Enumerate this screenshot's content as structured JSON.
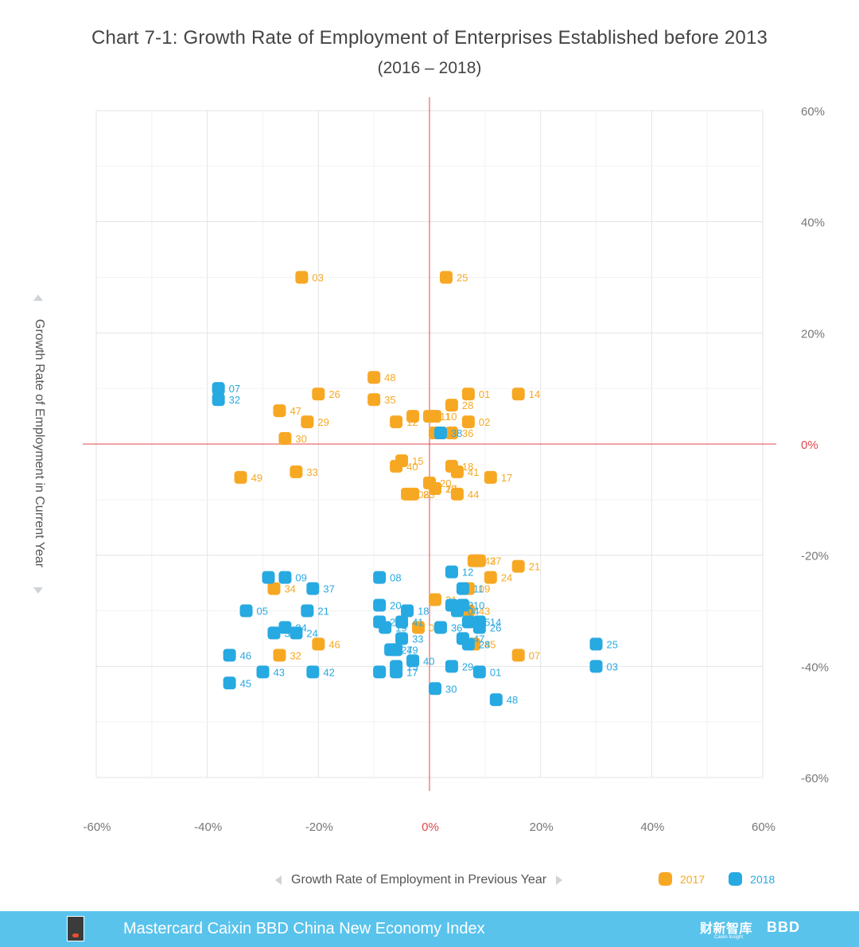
{
  "title": "Chart 7-1: Growth Rate of Employment of Enterprises Established before 2013",
  "subtitle": "(2016 – 2018)",
  "footer": {
    "text": "Mastercard Caixin BBD China New Economy Index",
    "brand1": "财新智库",
    "brand1_sub": "Caixin Insight",
    "brand2": "BBD"
  },
  "colors": {
    "2017": "#f7a823",
    "2018": "#27a9e1",
    "zero_axis": "#e0474c",
    "grid": "#e6e6e6"
  },
  "chart_data": {
    "type": "scatter",
    "title": "Chart 7-1: Growth Rate of Employment of Enterprises Established before 2013",
    "subtitle": "(2016 – 2018)",
    "xlabel": "Growth Rate of Employment in Previous Year",
    "ylabel": "Growth Rate of Employment in Current Year",
    "xlim": [
      -60,
      60
    ],
    "ylim": [
      -60,
      60
    ],
    "x_ticks": [
      "-60%",
      "-40%",
      "-20%",
      "0%",
      "20%",
      "40%",
      "60%"
    ],
    "y_ticks": [
      "60%",
      "40%",
      "20%",
      "0%",
      "-20%",
      "-40%",
      "-60%"
    ],
    "grid": true,
    "legend_position": "bottom-right",
    "series": [
      {
        "name": "2017",
        "points": [
          {
            "id": "03",
            "x": -23,
            "y": 30
          },
          {
            "id": "25",
            "x": 3,
            "y": 30
          },
          {
            "id": "48",
            "x": -10,
            "y": 12
          },
          {
            "id": "26",
            "x": -20,
            "y": 9
          },
          {
            "id": "35",
            "x": -10,
            "y": 8
          },
          {
            "id": "01",
            "x": 7,
            "y": 9
          },
          {
            "id": "14",
            "x": 16,
            "y": 9
          },
          {
            "id": "47",
            "x": -27,
            "y": 6
          },
          {
            "id": "12",
            "x": -6,
            "y": 4
          },
          {
            "id": "04",
            "x": -3,
            "y": 5
          },
          {
            "id": "11",
            "x": 0,
            "y": 5
          },
          {
            "id": "28",
            "x": 4,
            "y": 7
          },
          {
            "id": "29",
            "x": -22,
            "y": 4
          },
          {
            "id": "10",
            "x": 1,
            "y": 5
          },
          {
            "id": "02",
            "x": 7,
            "y": 4
          },
          {
            "id": "30",
            "x": -26,
            "y": 1
          },
          {
            "id": "38",
            "x": 1,
            "y": 2
          },
          {
            "id": "36",
            "x": 4,
            "y": 2
          },
          {
            "id": "15",
            "x": -5,
            "y": -3
          },
          {
            "id": "40",
            "x": -6,
            "y": -4
          },
          {
            "id": "18",
            "x": 4,
            "y": -4
          },
          {
            "id": "49",
            "x": -34,
            "y": -6
          },
          {
            "id": "33",
            "x": -24,
            "y": -5
          },
          {
            "id": "41",
            "x": 5,
            "y": -5
          },
          {
            "id": "17",
            "x": 11,
            "y": -6
          },
          {
            "id": "20",
            "x": 0,
            "y": -7
          },
          {
            "id": "27",
            "x": 1,
            "y": -8
          },
          {
            "id": "08",
            "x": -4,
            "y": -9
          },
          {
            "id": "44",
            "x": 5,
            "y": -9
          },
          {
            "id": "23",
            "x": -3,
            "y": -9
          },
          {
            "id": "19",
            "x": 1,
            "y": -8
          },
          {
            "id": "42",
            "x": 8,
            "y": -21
          },
          {
            "id": "37",
            "x": 9,
            "y": -21
          },
          {
            "id": "21",
            "x": 16,
            "y": -22
          },
          {
            "id": "24",
            "x": 11,
            "y": -24
          },
          {
            "id": "34",
            "x": -28,
            "y": -26
          },
          {
            "id": "09",
            "x": 7,
            "y": -26
          },
          {
            "id": "31",
            "x": 1,
            "y": -28
          },
          {
            "id": "22",
            "x": 4,
            "y": -29
          },
          {
            "id": "43",
            "x": 7,
            "y": -30
          },
          {
            "id": "05",
            "x": -2,
            "y": -33
          },
          {
            "id": "46",
            "x": -20,
            "y": -36
          },
          {
            "id": "45",
            "x": 8,
            "y": -36
          },
          {
            "id": "32",
            "x": -27,
            "y": -38
          },
          {
            "id": "07",
            "x": 16,
            "y": -38
          }
        ]
      },
      {
        "name": "2018",
        "points": [
          {
            "id": "07",
            "x": -38,
            "y": 10
          },
          {
            "id": "32",
            "x": -38,
            "y": 8
          },
          {
            "id": "38",
            "x": 2,
            "y": 2
          },
          {
            "id": "09",
            "x": -26,
            "y": -24
          },
          {
            "id": "22",
            "x": -29,
            "y": -24
          },
          {
            "id": "08",
            "x": -9,
            "y": -24
          },
          {
            "id": "12",
            "x": 4,
            "y": -23
          },
          {
            "id": "37",
            "x": -21,
            "y": -26
          },
          {
            "id": "11",
            "x": 6,
            "y": -26
          },
          {
            "id": "05",
            "x": -33,
            "y": -30
          },
          {
            "id": "21",
            "x": -22,
            "y": -30
          },
          {
            "id": "20",
            "x": -9,
            "y": -29
          },
          {
            "id": "18",
            "x": -4,
            "y": -30
          },
          {
            "id": "02",
            "x": 4,
            "y": -29
          },
          {
            "id": "10",
            "x": 6,
            "y": -29
          },
          {
            "id": "34",
            "x": -26,
            "y": -33
          },
          {
            "id": "31",
            "x": -28,
            "y": -34
          },
          {
            "id": "24",
            "x": -24,
            "y": -34
          },
          {
            "id": "23",
            "x": -9,
            "y": -32
          },
          {
            "id": "19",
            "x": -8,
            "y": -33
          },
          {
            "id": "41",
            "x": -5,
            "y": -32
          },
          {
            "id": "04",
            "x": 5,
            "y": -30
          },
          {
            "id": "35",
            "x": 7,
            "y": -32
          },
          {
            "id": "14",
            "x": 9,
            "y": -32
          },
          {
            "id": "26",
            "x": 9,
            "y": -33
          },
          {
            "id": "36",
            "x": 2,
            "y": -33
          },
          {
            "id": "33",
            "x": -5,
            "y": -35
          },
          {
            "id": "47",
            "x": 6,
            "y": -35
          },
          {
            "id": "28",
            "x": 7,
            "y": -36
          },
          {
            "id": "27",
            "x": -7,
            "y": -37
          },
          {
            "id": "49",
            "x": -6,
            "y": -37
          },
          {
            "id": "40",
            "x": -3,
            "y": -39
          },
          {
            "id": "46",
            "x": -36,
            "y": -38
          },
          {
            "id": "25",
            "x": 30,
            "y": -36
          },
          {
            "id": "03",
            "x": 30,
            "y": -40
          },
          {
            "id": "44",
            "x": -9,
            "y": -41
          },
          {
            "id": "15",
            "x": -6,
            "y": -40
          },
          {
            "id": "17",
            "x": -6,
            "y": -41
          },
          {
            "id": "29",
            "x": 4,
            "y": -40
          },
          {
            "id": "01",
            "x": 9,
            "y": -41
          },
          {
            "id": "43",
            "x": -30,
            "y": -41
          },
          {
            "id": "42",
            "x": -21,
            "y": -41
          },
          {
            "id": "45",
            "x": -36,
            "y": -43
          },
          {
            "id": "30",
            "x": 1,
            "y": -44
          },
          {
            "id": "48",
            "x": 12,
            "y": -46
          }
        ]
      }
    ]
  }
}
